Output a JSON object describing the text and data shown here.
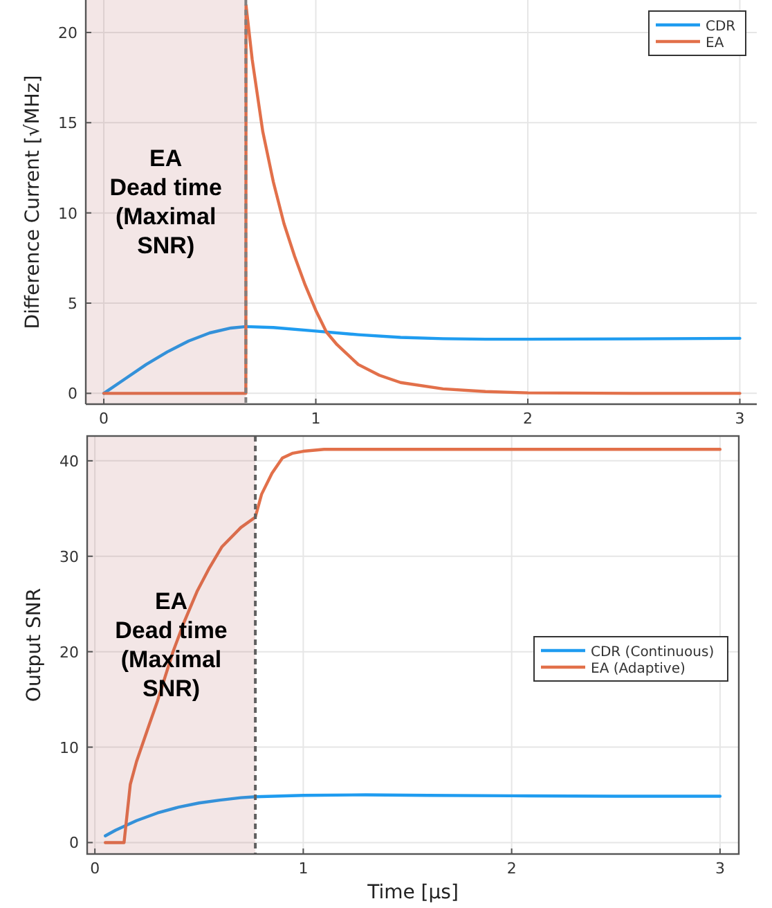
{
  "chart_data": [
    {
      "type": "line",
      "ylabel": "Difference Current [√MHz]",
      "xlim": [
        -0.085,
        3.08
      ],
      "ylim": [
        -0.6,
        21.8
      ],
      "xticks": [
        0,
        1,
        2,
        3
      ],
      "yticks": [
        0,
        5,
        10,
        15,
        20
      ],
      "grid": true,
      "legend": "top right",
      "series": [
        {
          "name": "CDR",
          "color": "#1f9cf0",
          "x": [
            0,
            0.1,
            0.2,
            0.3,
            0.4,
            0.5,
            0.6,
            0.67,
            0.8,
            1.0,
            1.2,
            1.4,
            1.6,
            1.8,
            2.0,
            2.5,
            3.0
          ],
          "values": [
            0,
            0.8,
            1.6,
            2.3,
            2.9,
            3.35,
            3.62,
            3.7,
            3.65,
            3.45,
            3.25,
            3.1,
            3.03,
            3.0,
            3.0,
            3.02,
            3.05
          ]
        },
        {
          "name": "EA",
          "color": "#e2704a",
          "x": [
            0,
            0.67,
            0.671,
            0.7,
            0.75,
            0.8,
            0.85,
            0.9,
            0.95,
            1.0,
            1.05,
            1.1,
            1.2,
            1.3,
            1.4,
            1.6,
            1.8,
            2.0,
            2.5,
            3.0
          ],
          "values": [
            0,
            0,
            21.5,
            18.5,
            14.5,
            11.7,
            9.4,
            7.6,
            6.0,
            4.6,
            3.4,
            2.7,
            1.6,
            1.0,
            0.6,
            0.25,
            0.1,
            0.03,
            0,
            0
          ]
        }
      ],
      "bands": [
        {
          "axis": "x",
          "from": -0.085,
          "to": 0.67,
          "color": "#b05a5a"
        }
      ],
      "ref_lines": [
        {
          "axis": "x",
          "value": 0.67,
          "color": "#808080",
          "line_style": "dashed"
        }
      ],
      "annotations": [
        "EA\nDead time\n(Maximal\nSNR)"
      ]
    },
    {
      "type": "line",
      "xlabel": "Time [µs]",
      "ylabel": "Output SNR",
      "xlim": [
        -0.037,
        3.09
      ],
      "ylim": [
        -1.2,
        42.6
      ],
      "xticks": [
        0,
        1,
        2,
        3
      ],
      "yticks": [
        0,
        10,
        20,
        30,
        40
      ],
      "grid": true,
      "legend": "right",
      "series": [
        {
          "name": "CDR (Continuous)",
          "color": "#1f9cf0",
          "x": [
            0.05,
            0.1,
            0.2,
            0.3,
            0.4,
            0.5,
            0.6,
            0.7,
            0.77,
            1.0,
            1.3,
            1.6,
            2.0,
            2.5,
            3.0
          ],
          "values": [
            0.7,
            1.3,
            2.3,
            3.1,
            3.7,
            4.15,
            4.45,
            4.7,
            4.8,
            4.95,
            5.0,
            4.95,
            4.9,
            4.85,
            4.85
          ]
        },
        {
          "name": "EA (Adaptive)",
          "color": "#e2704a",
          "x": [
            0.05,
            0.14,
            0.17,
            0.2,
            0.26,
            0.3,
            0.375,
            0.43,
            0.49,
            0.55,
            0.61,
            0.7,
            0.77,
            0.8,
            0.85,
            0.9,
            0.95,
            1.0,
            1.1,
            1.5,
            2.0,
            3.0
          ],
          "values": [
            0,
            0,
            6.1,
            8.5,
            12.3,
            14.8,
            20,
            23.2,
            26.3,
            28.8,
            31,
            33,
            34.1,
            36.5,
            38.7,
            40.3,
            40.8,
            41,
            41.2,
            41.2,
            41.2,
            41.2
          ]
        }
      ],
      "bands": [
        {
          "axis": "x",
          "from": -0.037,
          "to": 0.77,
          "color": "#b05a5a"
        }
      ],
      "ref_lines": [
        {
          "axis": "x",
          "value": 0.77,
          "color": "#606060",
          "line_style": "dashed"
        }
      ],
      "annotations": [
        "EA\nDead time\n(Maximal\nSNR)"
      ]
    }
  ]
}
